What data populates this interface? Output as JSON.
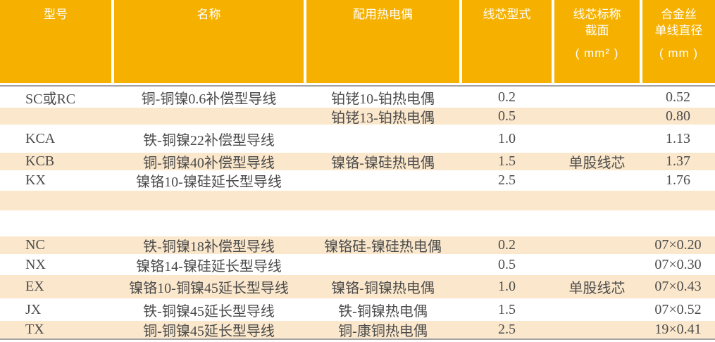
{
  "colors": {
    "header_bg": "#F6B100",
    "header_text": "#FFFFFF",
    "stripe_bg": "#FBE7CB",
    "rule_color": "#A3A3A3",
    "body_text": "#4C4C4C",
    "page_bg": "#FFFFFF"
  },
  "table": {
    "columns": [
      {
        "line1": "型号",
        "line2": "",
        "unit": ""
      },
      {
        "line1": "名称",
        "line2": "",
        "unit": ""
      },
      {
        "line1": "配用热电偶",
        "line2": "",
        "unit": ""
      },
      {
        "line1": "线芯型式",
        "line2": "",
        "unit": ""
      },
      {
        "line1": "线芯标称",
        "line2": "截面",
        "unit": "( mm² )"
      },
      {
        "line1": "合金丝",
        "line2": "单线直径",
        "unit": "( mm )"
      }
    ],
    "rows": [
      {
        "model": "SC或RC",
        "name": "铜-铜镍0.6补偿型导线",
        "thermocouple": "铂铑10-铂热电偶",
        "core_form": "0.2",
        "section": "",
        "diameter": "0.52"
      },
      {
        "model": "",
        "name": "",
        "thermocouple": "铂铑13-铂热电偶",
        "core_form": "0.5",
        "section": "",
        "diameter": "0.80"
      },
      {
        "model": "KCA",
        "name": "铁-铜镍22补偿型导线",
        "thermocouple": "",
        "core_form": "1.0",
        "section": "",
        "diameter": "1.13"
      },
      {
        "model": "KCB",
        "name": "铜-铜镍40补偿型导线",
        "thermocouple": "镍铬-镍硅热电偶",
        "core_form": "1.5",
        "section": "单股线芯",
        "diameter": "1.37"
      },
      {
        "model": "KX",
        "name": "镍铬10-镍硅延长型导线",
        "thermocouple": "",
        "core_form": "2.5",
        "section": "",
        "diameter": "1.76"
      },
      {
        "spacer": true
      },
      {
        "spacer": true
      },
      {
        "model": "NC",
        "name": "铁-铜镍18补偿型导线",
        "thermocouple": "镍铬硅-镍硅热电偶",
        "core_form": "0.2",
        "section": "",
        "diameter": "07×0.20"
      },
      {
        "model": "NX",
        "name": "镍铬14-镍硅延长型导线",
        "thermocouple": "",
        "core_form": "0.5",
        "section": "",
        "diameter": "07×0.30"
      },
      {
        "model": "EX",
        "name": "镍铬10-铜镍45延长型导线",
        "thermocouple": "镍铬-铜镍热电偶",
        "core_form": "1.0",
        "section": "单股线芯",
        "diameter": "07×0.43"
      },
      {
        "model": "JX",
        "name": "铁-铜镍45延长型导线",
        "thermocouple": "铁-铜镍热电偶",
        "core_form": "1.5",
        "section": "",
        "diameter": "07×0.52"
      },
      {
        "model": "TX",
        "name": "铜-铜镍45延长型导线",
        "thermocouple": "铜-康铜热电偶",
        "core_form": "2.5",
        "section": "",
        "diameter": "19×0.41"
      }
    ]
  }
}
